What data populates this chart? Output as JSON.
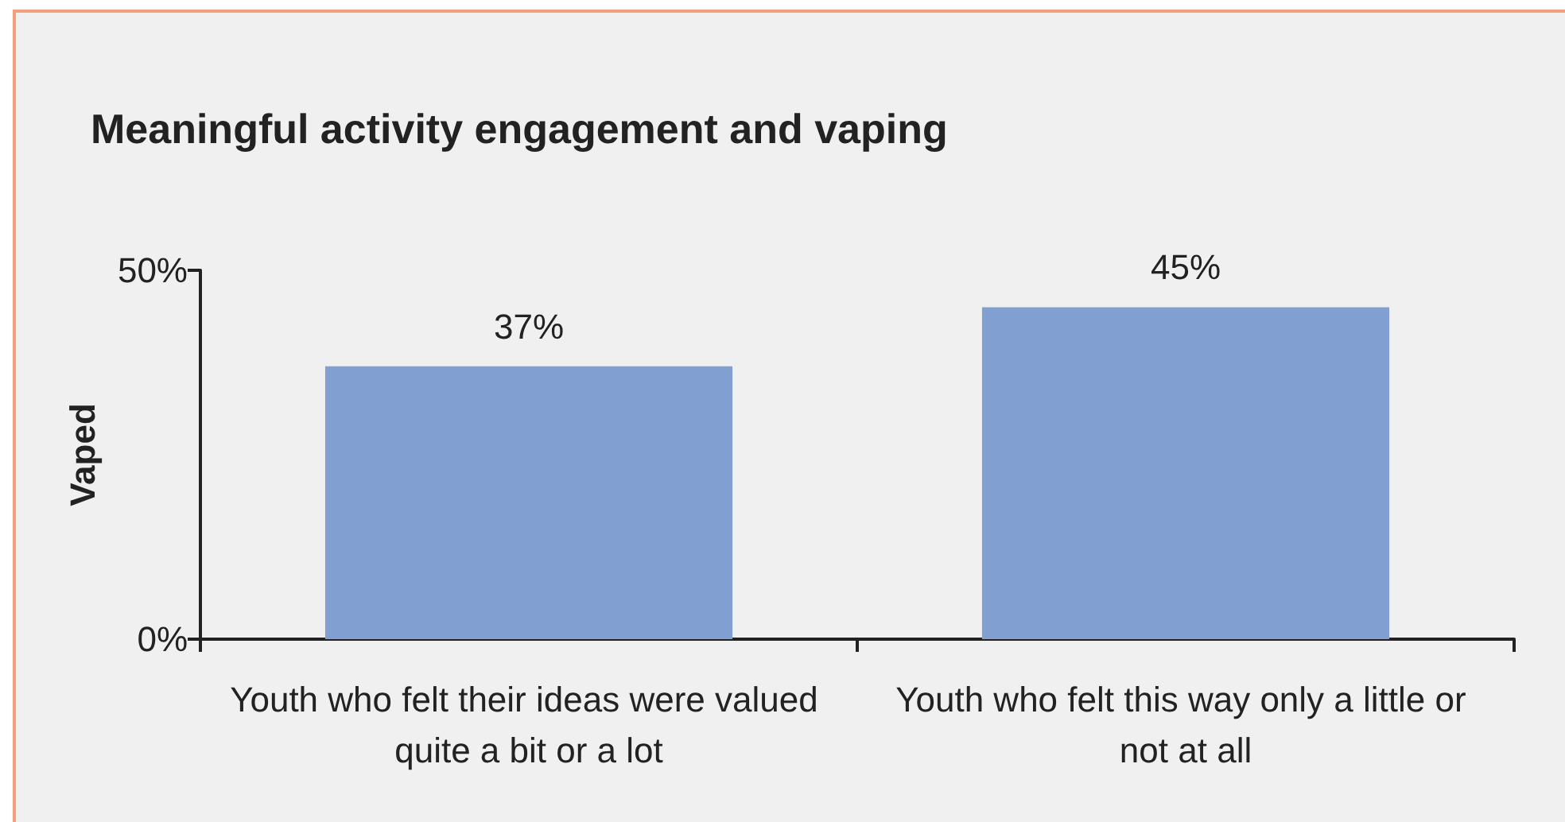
{
  "chart_data": {
    "type": "bar",
    "title": "Meaningful activity engagement and vaping",
    "ylabel": "Vaped",
    "categories": [
      "Youth who felt their ideas were valued quite a bit or a lot",
      "Youth who felt this way only a little or not at all"
    ],
    "values": [
      37,
      45
    ],
    "value_labels": [
      "37%",
      "45%"
    ],
    "color": "#829fd1",
    "ylim": [
      0,
      50
    ],
    "yticks": [
      {
        "value": 0,
        "label": "0%"
      },
      {
        "value": 50,
        "label": "50%"
      }
    ],
    "grid": false
  }
}
